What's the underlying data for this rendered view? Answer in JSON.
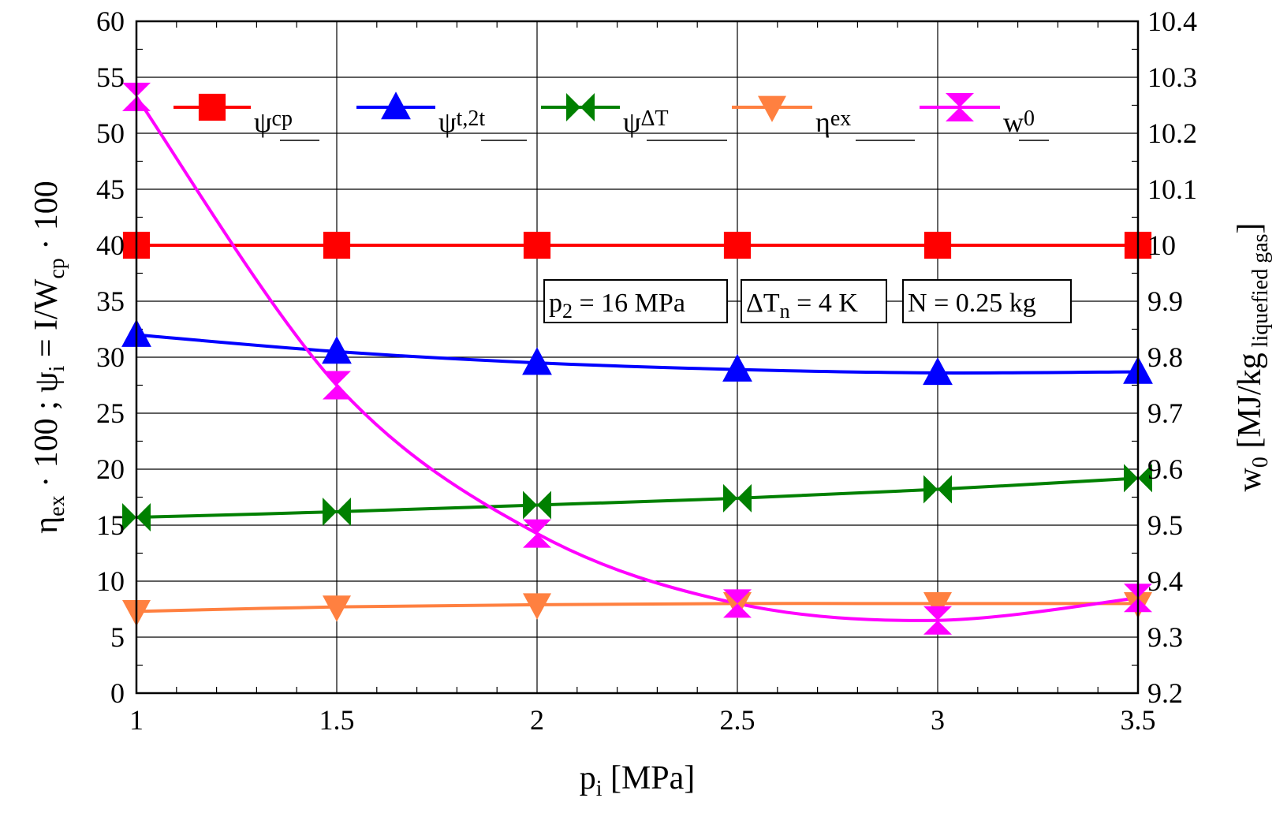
{
  "chart_data": {
    "type": "line",
    "x": [
      1,
      1.5,
      2,
      2.5,
      3,
      3.5
    ],
    "xlim": [
      1,
      3.5
    ],
    "ylim_left": [
      0,
      60
    ],
    "ylim_right": [
      9.2,
      10.4
    ],
    "x_ticks": [
      "1",
      "1.5",
      "2",
      "2.5",
      "3",
      "3.5"
    ],
    "y_left_ticks": [
      "0",
      "5",
      "10",
      "15",
      "20",
      "25",
      "30",
      "35",
      "40",
      "45",
      "50",
      "55",
      "60"
    ],
    "y_right_ticks": [
      "9.2",
      "9.3",
      "9.4",
      "9.5",
      "9.6",
      "9.7",
      "9.8",
      "9.9",
      "10",
      "10.1",
      "10.2",
      "10.3",
      "10.4"
    ],
    "xlabel": {
      "main": "p",
      "sub": "i",
      "unit": " [MPa]"
    },
    "ylabel_left": {
      "eta": "η",
      "eta_sub": "ex",
      "mid": " · 100 ; ψ",
      "psi_sub": "i",
      "eq": " = I/W",
      "w_sub": "cp",
      "end": " · 100"
    },
    "ylabel_right": {
      "main": "w",
      "main_sub": "0",
      "unit": " [MJ/kg",
      "unit_sub": " liquefied gas",
      "close": "]"
    },
    "grid": true,
    "series": [
      {
        "key": "psi_cp",
        "name": "ψ",
        "sub": "cp",
        "color": "#ff0000",
        "marker": "square",
        "axis": "left",
        "values": [
          40,
          40,
          40,
          40,
          40,
          40
        ]
      },
      {
        "key": "psi_t2t",
        "name": "ψ",
        "sub": "t,2t",
        "color": "#0000ff",
        "marker": "triangle-up",
        "axis": "left",
        "values": [
          32,
          30.5,
          29.5,
          28.9,
          28.6,
          28.7
        ]
      },
      {
        "key": "psi_dT",
        "name": "ψ",
        "sub": "ΔT",
        "color": "#008000",
        "marker": "bowtie",
        "axis": "left",
        "values": [
          15.7,
          16.2,
          16.8,
          17.4,
          18.2,
          19.2
        ]
      },
      {
        "key": "eta_ex",
        "name": "η",
        "sub": "ex",
        "color": "#ff8040",
        "marker": "triangle-down",
        "axis": "left",
        "values": [
          7.3,
          7.7,
          7.9,
          8.0,
          8.0,
          8.0
        ]
      },
      {
        "key": "w0",
        "name": "w",
        "sub": "0",
        "color": "#ff00ff",
        "marker": "hourglass",
        "axis": "right",
        "values": [
          10.265,
          9.75,
          9.485,
          9.36,
          9.33,
          9.37
        ]
      }
    ],
    "annotations": [
      {
        "main": "p",
        "sub": "2",
        "rest": " = 16 MPa"
      },
      {
        "main": "ΔT",
        "sub": "n",
        "rest": " = 4 K"
      },
      {
        "main": "N",
        "sub": "",
        "rest": " = 0.25 kg"
      }
    ],
    "legend_position": "top"
  }
}
